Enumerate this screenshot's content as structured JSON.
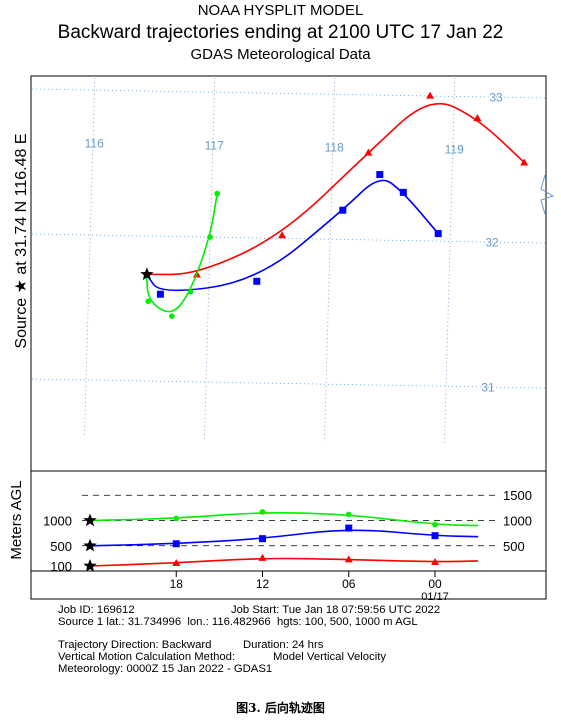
{
  "header": {
    "title": "NOAA HYSPLIT MODEL",
    "subtitle": "Backward trajectories ending at 2100 UTC 17 Jan 22",
    "meteo": "GDAS Meteorological Data"
  },
  "side_label": {
    "prefix": "Source",
    "at": "at",
    "coords": "31.74 N   116.48 E"
  },
  "agl_label": "Meters AGL",
  "info": {
    "job_id": "Job ID: 169612",
    "job_start": "Job Start: Tue Jan 18 07:59:56 UTC 2022",
    "source": "Source 1 lat.: 31.734996  lon.: 116.482966  hgts: 100, 500, 1000 m AGL",
    "direction": "Trajectory Direction: Backward",
    "duration": "Duration: 24 hrs",
    "vertical": "Vertical Motion Calculation Method:",
    "vertical_value": "Model Vertical Velocity",
    "meteorology": "Meteorology: 0000Z 15 Jan 2022 - GDAS1"
  },
  "caption": "图3.  后向轨迹图",
  "colors": {
    "red": "#ff0000",
    "blue": "#0000ff",
    "green": "#00ee00",
    "grid": "#6699cc"
  },
  "chart_data": [
    {
      "type": "line",
      "name": "map",
      "title": "Backward trajectories ending at 2100 UTC 17 Jan 22",
      "lon_labels": [
        "116",
        "117",
        "118",
        "119"
      ],
      "lat_labels": [
        "33",
        "32",
        "31"
      ],
      "source": {
        "lat": 31.735,
        "lon": 116.483,
        "marker": "star"
      },
      "series": [
        {
          "height": "100 m",
          "color": "#ff0000",
          "marker": "triangle",
          "points": [
            [
              116.48,
              31.735
            ],
            [
              116.9,
              31.74
            ],
            [
              117.6,
              32.02
            ],
            [
              118.3,
              32.6
            ],
            [
              118.8,
              33.0
            ],
            [
              119.2,
              32.85
            ],
            [
              119.6,
              32.55
            ]
          ]
        },
        {
          "height": "500 m",
          "color": "#0000ff",
          "marker": "square",
          "points": [
            [
              116.48,
              31.735
            ],
            [
              116.6,
              31.6
            ],
            [
              117.4,
              31.7
            ],
            [
              118.1,
              32.2
            ],
            [
              118.4,
              32.45
            ],
            [
              118.6,
              32.33
            ],
            [
              118.9,
              32.05
            ]
          ]
        },
        {
          "height": "1000 m",
          "color": "#00ee00",
          "marker": "circle",
          "points": [
            [
              116.48,
              31.735
            ],
            [
              116.5,
              31.55
            ],
            [
              116.7,
              31.45
            ],
            [
              116.85,
              31.62
            ],
            [
              117.0,
              32.0
            ],
            [
              117.05,
              32.3
            ]
          ]
        }
      ]
    },
    {
      "type": "line",
      "name": "height",
      "ylabel": "Meters AGL",
      "x_ticks": [
        "18",
        "12",
        "06",
        "00"
      ],
      "x_subtick": "01/17",
      "left_ticks": [
        "1000",
        "500",
        "100"
      ],
      "right_ticks": [
        "1500",
        "1000",
        "500"
      ],
      "x_hours": [
        -24,
        0
      ],
      "ylim": [
        0,
        1600
      ],
      "series": [
        {
          "name": "100 m",
          "color": "#ff0000",
          "marker": "triangle",
          "x": [
            -24,
            -18,
            -12,
            -6,
            0,
            3
          ],
          "y": [
            100,
            160,
            260,
            230,
            180,
            200
          ]
        },
        {
          "name": "500 m",
          "color": "#0000ff",
          "marker": "square",
          "x": [
            -24,
            -18,
            -12,
            -6,
            0,
            3
          ],
          "y": [
            500,
            540,
            640,
            850,
            700,
            680
          ]
        },
        {
          "name": "1000 m",
          "color": "#00ee00",
          "marker": "circle",
          "x": [
            -24,
            -18,
            -12,
            -6,
            0,
            3
          ],
          "y": [
            1000,
            1040,
            1170,
            1120,
            920,
            900
          ]
        }
      ]
    }
  ]
}
